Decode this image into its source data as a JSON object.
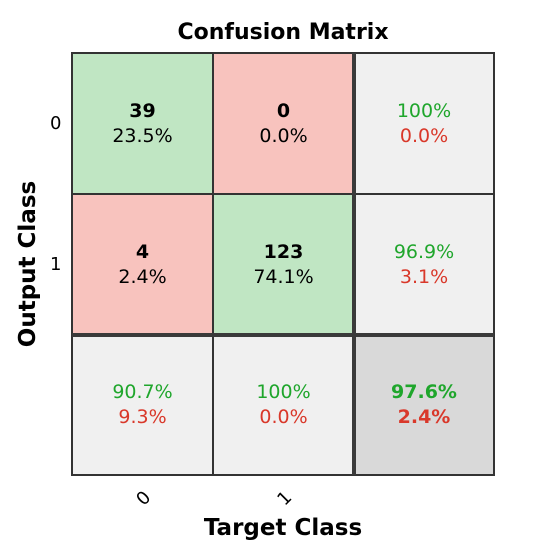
{
  "chart_data": {
    "type": "heatmap",
    "title": "Confusion Matrix",
    "xlabel": "Target Class",
    "ylabel": "Output Class",
    "x_tick_labels": [
      "0",
      "1"
    ],
    "y_tick_labels": [
      "0",
      "1"
    ],
    "cells": [
      [
        {
          "count": "39",
          "percent": "23.5%"
        },
        {
          "count": "0",
          "percent": "0.0%"
        }
      ],
      [
        {
          "count": "4",
          "percent": "2.4%"
        },
        {
          "count": "123",
          "percent": "74.1%"
        }
      ]
    ],
    "row_summary": [
      {
        "correct": "100%",
        "incorrect": "0.0%"
      },
      {
        "correct": "96.9%",
        "incorrect": "3.1%"
      }
    ],
    "column_summary": [
      {
        "correct": "90.7%",
        "incorrect": "9.3%"
      },
      {
        "correct": "100%",
        "incorrect": "0.0%"
      }
    ],
    "overall": {
      "correct": "97.6%",
      "incorrect": "2.4%"
    },
    "colors": {
      "correct_cell": "#c0e6c3",
      "incorrect_cell": "#f8c3be",
      "summary_cell": "#f0f0f0",
      "overall_cell": "#d9d9d9",
      "correct_text": "#1fa62c",
      "incorrect_text": "#d9382a"
    }
  }
}
